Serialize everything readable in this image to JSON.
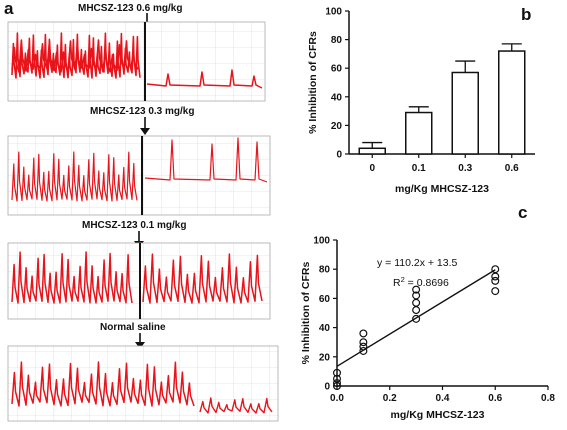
{
  "panel_letters": {
    "a": "a",
    "b": "b",
    "c": "c"
  },
  "traces": [
    {
      "label": "MHCSZ-123 0.6 mg/kg"
    },
    {
      "label": "MHCSZ-123 0.3 mg/kg"
    },
    {
      "label": "MHCSZ-123 0.1 mg/kg"
    },
    {
      "label": "Normal saline"
    }
  ],
  "colors": {
    "trace": "#e8141b",
    "grid": "#c9e6ec",
    "axis": "#111111"
  },
  "chart_data": [
    {
      "panel": "b",
      "type": "bar",
      "categories": [
        "0",
        "0.1",
        "0.3",
        "0.6"
      ],
      "values": [
        4,
        29,
        57,
        72
      ],
      "errors": [
        4,
        4,
        8,
        5
      ],
      "xlabel": "mg/Kg MHCSZ-123",
      "ylabel": "% Inhibition of CFRs",
      "ylim": [
        0,
        100
      ],
      "yticks": [
        "0",
        "20",
        "40",
        "60",
        "80",
        "100"
      ]
    },
    {
      "panel": "c",
      "type": "scatter",
      "points": [
        {
          "x": 0,
          "y": 0
        },
        {
          "x": 0,
          "y": 2
        },
        {
          "x": 0,
          "y": 5
        },
        {
          "x": 0,
          "y": 9
        },
        {
          "x": 0.1,
          "y": 24
        },
        {
          "x": 0.1,
          "y": 27
        },
        {
          "x": 0.1,
          "y": 30
        },
        {
          "x": 0.1,
          "y": 36
        },
        {
          "x": 0.3,
          "y": 46
        },
        {
          "x": 0.3,
          "y": 52
        },
        {
          "x": 0.3,
          "y": 57
        },
        {
          "x": 0.3,
          "y": 62
        },
        {
          "x": 0.3,
          "y": 66
        },
        {
          "x": 0.6,
          "y": 65
        },
        {
          "x": 0.6,
          "y": 72
        },
        {
          "x": 0.6,
          "y": 75
        },
        {
          "x": 0.6,
          "y": 80
        }
      ],
      "fit": {
        "slope": 110.2,
        "intercept": 13.5,
        "equation": "y = 110.2x + 13.5",
        "r2_prefix": "R",
        "r2_sup": "2",
        "r2_value": " = 0.8696"
      },
      "xlabel": "mg/Kg MHCSZ-123",
      "ylabel": "% Inhibition of CFRs",
      "xlim": [
        0,
        0.8
      ],
      "ylim": [
        0,
        100
      ],
      "xticks": [
        "0.0",
        "0.2",
        "0.4",
        "0.6",
        "0.8"
      ],
      "yticks": [
        "0",
        "20",
        "40",
        "60",
        "80",
        "100"
      ]
    }
  ]
}
